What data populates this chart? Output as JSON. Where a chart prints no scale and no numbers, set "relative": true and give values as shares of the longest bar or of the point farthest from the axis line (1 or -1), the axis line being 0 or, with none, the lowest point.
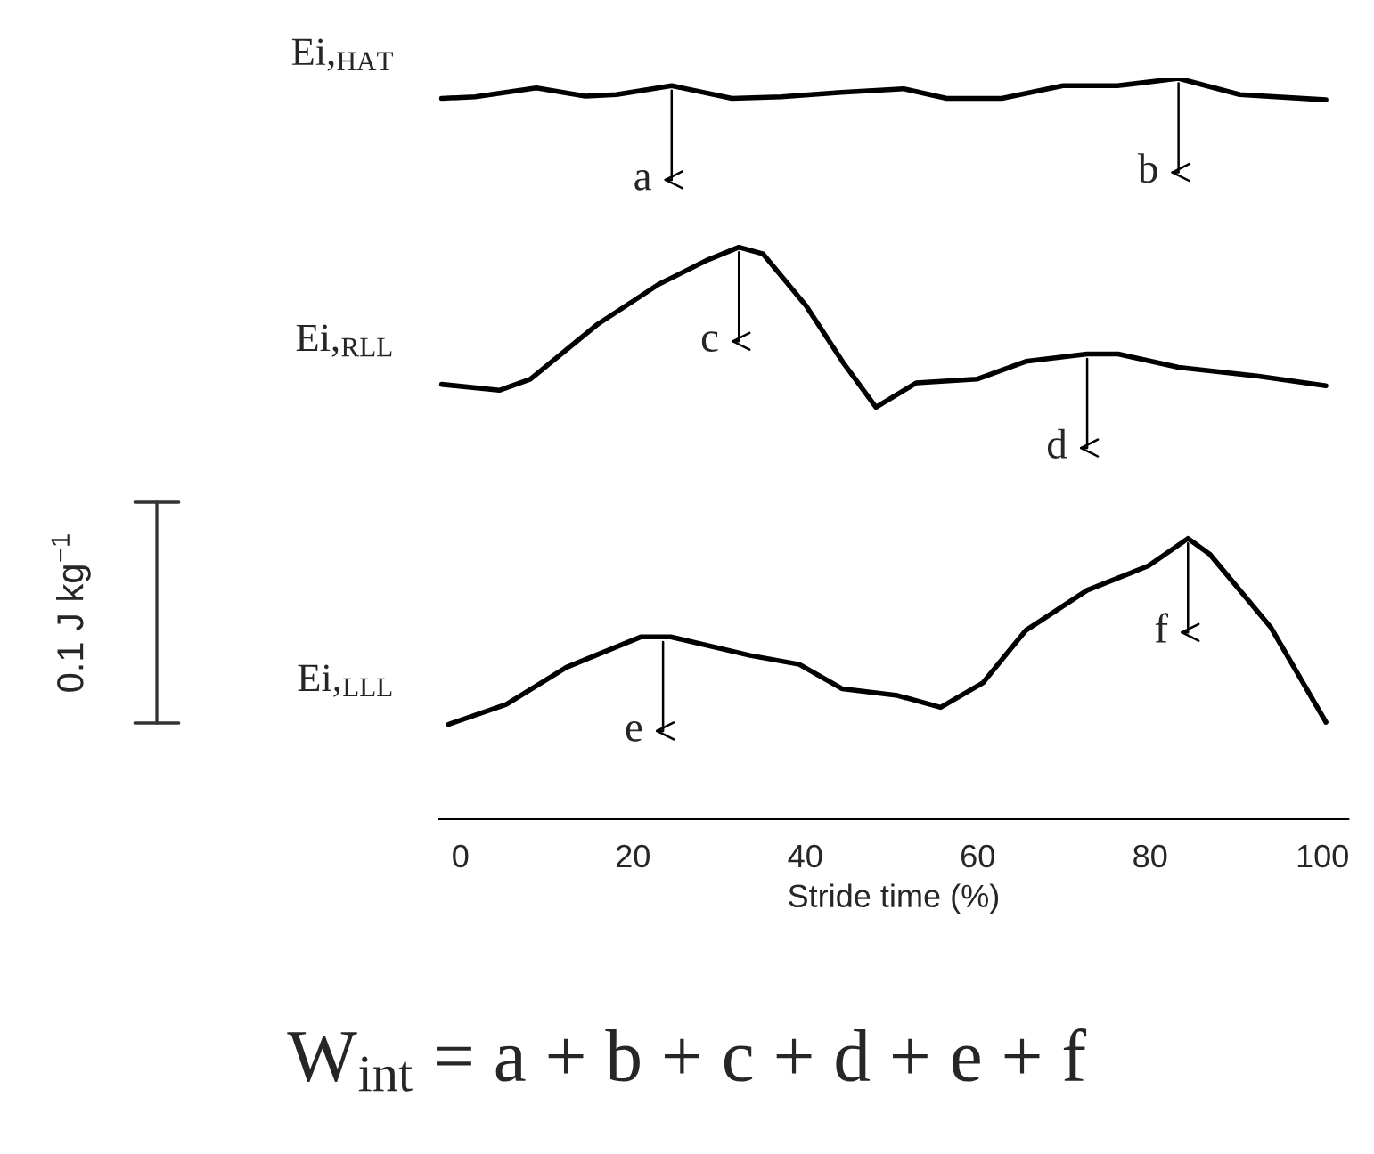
{
  "chart_data": {
    "type": "line",
    "relative": true,
    "xlabel": "Stride time (%)",
    "xlim": [
      -2.5,
      103
    ],
    "xticks": [
      0,
      20,
      40,
      60,
      80,
      100
    ],
    "legend": false,
    "grid": false,
    "series": [
      {
        "name": "Ei,$_{HAT}$",
        "color": "#000000",
        "x": [
          -2.2,
          1.7,
          8.8,
          14.5,
          18.1,
          24.5,
          31.5,
          37.2,
          44.2,
          51.4,
          56.4,
          62.8,
          69.9,
          76.2,
          83.3,
          90.4,
          100.4
        ],
        "values": [
          0.973,
          0.975,
          0.987,
          0.976,
          0.978,
          0.99,
          0.973,
          0.975,
          0.981,
          0.986,
          0.973,
          0.973,
          0.99,
          0.99,
          1.0,
          0.978,
          0.971
        ]
      },
      {
        "name": "Ei,$_{RLL}$",
        "color": "#000000",
        "x": [
          -2.2,
          4.5,
          8.1,
          15.9,
          23.0,
          28.7,
          32.3,
          35.1,
          40.1,
          44.3,
          48.2,
          52.9,
          59.9,
          65.6,
          72.7,
          76.3,
          83.3,
          92.6,
          100.4
        ],
        "values": [
          0.587,
          0.579,
          0.594,
          0.668,
          0.722,
          0.755,
          0.772,
          0.763,
          0.693,
          0.618,
          0.556,
          0.589,
          0.594,
          0.618,
          0.628,
          0.628,
          0.61,
          0.598,
          0.585
        ]
      },
      {
        "name": "Ei,$_{LLL}$",
        "color": "#000000",
        "x": [
          -1.4,
          5.3,
          12.3,
          20.9,
          24.4,
          33.6,
          39.3,
          44.3,
          50.7,
          55.7,
          60.6,
          65.6,
          72.7,
          79.8,
          84.4,
          86.9,
          94.0,
          100.4
        ],
        "values": [
          0.128,
          0.155,
          0.205,
          0.246,
          0.246,
          0.221,
          0.209,
          0.176,
          0.167,
          0.151,
          0.184,
          0.255,
          0.309,
          0.342,
          0.379,
          0.358,
          0.259,
          0.131
        ]
      }
    ],
    "annotations": [
      "0.1 J kg$^{−1}$",
      "W$_{int}$ = a + b + c + d + e + f",
      {
        "text": "a",
        "x": 24.5,
        "y": 0.99
      },
      {
        "text": "b",
        "x": 83.3,
        "y": 1.0
      },
      {
        "text": "c",
        "x": 32.3,
        "y": 0.772
      },
      {
        "text": "d",
        "x": 72.7,
        "y": 0.628
      },
      {
        "text": "e",
        "x": 23.5,
        "y": 0.246
      },
      {
        "text": "f",
        "x": 84.4,
        "y": 0.379
      }
    ]
  }
}
